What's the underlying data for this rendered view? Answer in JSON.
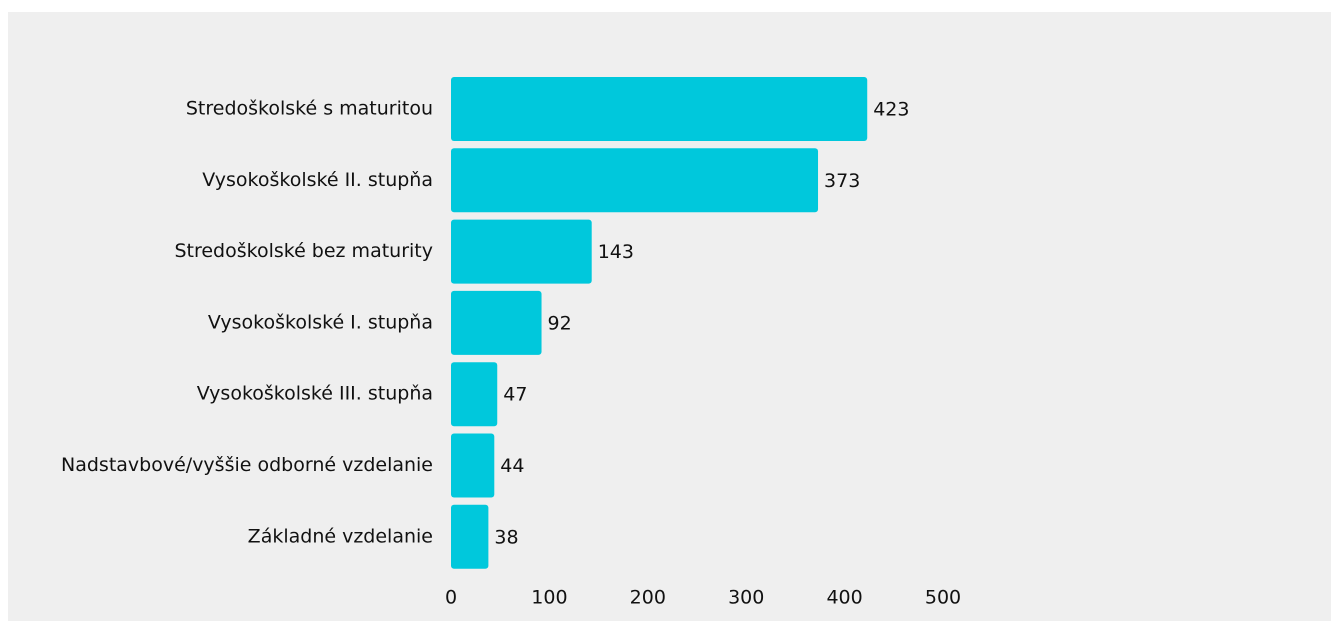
{
  "chart_data": {
    "type": "bar",
    "orientation": "horizontal",
    "categories": [
      "Stredoškolské s maturitou",
      "Vysokoškolské II. stupňa",
      "Stredoškolské bez maturity",
      "Vysokoškolské I. stupňa",
      "Vysokoškolské III. stupňa",
      "Nadstavbové/vyššie odborné vzdelanie",
      "Základné vzdelanie"
    ],
    "values": [
      423,
      373,
      143,
      92,
      47,
      44,
      38
    ],
    "xlim": [
      0,
      500
    ],
    "xticks": [
      0,
      100,
      200,
      300,
      400,
      500
    ],
    "grid": false,
    "legend": "none",
    "bar_color": "#00c8dc",
    "background_color": "#efefef"
  }
}
